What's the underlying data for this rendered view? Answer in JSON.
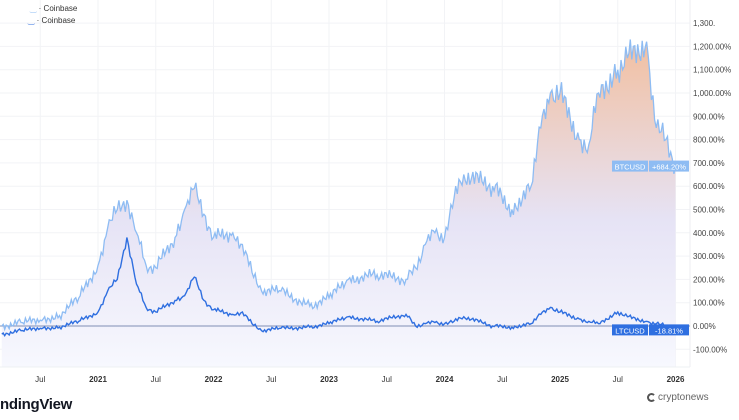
{
  "legend": [
    {
      "text": "· Coinbase",
      "color": "#90bdf5"
    },
    {
      "text": "· Coinbase",
      "color": "#2f6fe0"
    }
  ],
  "branding": {
    "text": "ndingView",
    "watermark": "cryptonews"
  },
  "colors": {
    "btc_line": "#8ebcf3",
    "ltc_line": "#2f6fe0",
    "fill_top": "#f2bfa0",
    "fill_mid": "#e6e3f5",
    "fill_bottom": "#f7f8fe",
    "zero_line": "#7f8fb5"
  },
  "chart_data": {
    "type": "line",
    "title": "",
    "xlabel": "",
    "ylabel": "",
    "y_unit": "%",
    "ylim": [
      -130,
      1400
    ],
    "grid": true,
    "y_ticks": [
      "1,300.",
      "1,200.00%",
      "1,100.00%",
      "1,000.00%",
      "900.00%",
      "800.00%",
      "700.00%",
      "600.00%",
      "500.00%",
      "400.00%",
      "300.00%",
      "200.00%",
      "100.00%",
      "0.00%",
      "-100.00%"
    ],
    "y_tick_values": [
      1300,
      1200,
      1100,
      1000,
      900,
      800,
      700,
      600,
      500,
      400,
      300,
      200,
      100,
      0,
      -100
    ],
    "x_ticks": [
      {
        "label": "Jul",
        "date": "2020-07"
      },
      {
        "label": "2021",
        "date": "2021-01"
      },
      {
        "label": "Jul",
        "date": "2021-07"
      },
      {
        "label": "2022",
        "date": "2022-01"
      },
      {
        "label": "Jul",
        "date": "2022-07"
      },
      {
        "label": "2023",
        "date": "2023-01"
      },
      {
        "label": "Jul",
        "date": "2023-07"
      },
      {
        "label": "2024",
        "date": "2024-01"
      },
      {
        "label": "Jul",
        "date": "2024-07"
      },
      {
        "label": "2025",
        "date": "2025-01"
      },
      {
        "label": "Jul",
        "date": "2025-07"
      },
      {
        "label": "2026",
        "date": "2026-01"
      }
    ],
    "x": [
      "2020-03",
      "2020-05",
      "2020-07",
      "2020-09",
      "2020-11",
      "2021-01",
      "2021-02",
      "2021-03",
      "2021-04",
      "2021-05",
      "2021-06",
      "2021-07",
      "2021-09",
      "2021-10",
      "2021-11",
      "2021-12",
      "2022-01",
      "2022-03",
      "2022-04",
      "2022-05",
      "2022-06",
      "2022-08",
      "2022-11",
      "2023-01",
      "2023-03",
      "2023-06",
      "2023-09",
      "2023-10",
      "2023-11",
      "2023-12",
      "2024-01",
      "2024-02",
      "2024-03",
      "2024-06",
      "2024-08",
      "2024-10",
      "2024-11",
      "2024-12",
      "2025-01",
      "2025-03",
      "2025-04",
      "2025-05",
      "2025-07",
      "2025-08",
      "2025-10",
      "2025-11",
      "2025-12",
      "2026-01"
    ],
    "series": [
      {
        "name": "BTCUSD",
        "last_label": "+684.20%",
        "values": [
          0,
          15,
          25,
          45,
          120,
          260,
          420,
          500,
          540,
          400,
          260,
          250,
          380,
          500,
          590,
          480,
          380,
          400,
          350,
          230,
          150,
          150,
          85,
          120,
          200,
          220,
          200,
          250,
          350,
          400,
          380,
          550,
          650,
          600,
          500,
          600,
          850,
          1000,
          1000,
          800,
          780,
          1000,
          1100,
          1150,
          1220,
          850,
          800,
          684.2
        ]
      },
      {
        "name": "LTCUSD",
        "last_label": "-18.81%",
        "values": [
          -35,
          -20,
          -10,
          -5,
          20,
          60,
          150,
          200,
          380,
          180,
          80,
          60,
          110,
          130,
          210,
          110,
          70,
          50,
          60,
          10,
          -20,
          -10,
          -5,
          10,
          40,
          20,
          50,
          0,
          10,
          15,
          10,
          20,
          40,
          0,
          -5,
          10,
          50,
          80,
          60,
          30,
          20,
          10,
          60,
          40,
          20,
          10,
          0,
          -18.81
        ]
      }
    ]
  }
}
